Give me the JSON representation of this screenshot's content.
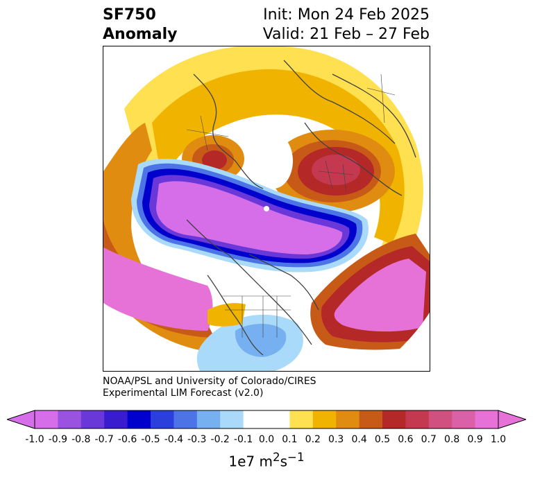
{
  "title": {
    "left_line1": "SF750",
    "left_line2": "Anomaly",
    "right_line1": "Init: Mon 24 Feb 2025",
    "right_line2": "Valid: 21 Feb – 27 Feb"
  },
  "credit": {
    "line1": "NOAA/PSL and University of Colorado/CIRES",
    "line2": "Experimental LIM Forecast (v2.0)"
  },
  "colorbar": {
    "colors": [
      "#d56ee8",
      "#9a52e0",
      "#6a38d8",
      "#3a1ccf",
      "#0000cd",
      "#2a3fdc",
      "#4d74e6",
      "#76b0f0",
      "#a9dafa",
      "#ffffff",
      "#ffffff",
      "#ffe050",
      "#f0b400",
      "#e08c10",
      "#c85a18",
      "#b42828",
      "#c43850",
      "#d05080",
      "#da60a8",
      "#e672d8"
    ],
    "tick_labels": [
      "-1.0",
      "-0.9",
      "-0.8",
      "-0.7",
      "-0.6",
      "-0.5",
      "-0.4",
      "-0.3",
      "-0.2",
      "-0.1",
      "0.0",
      "0.1",
      "0.2",
      "0.3",
      "0.4",
      "0.5",
      "0.6",
      "0.7",
      "0.8",
      "0.9",
      "1.0"
    ],
    "units_text": "1e7 m",
    "units_sup1": "2",
    "units_mid": "s",
    "units_sup2": "−1"
  }
}
